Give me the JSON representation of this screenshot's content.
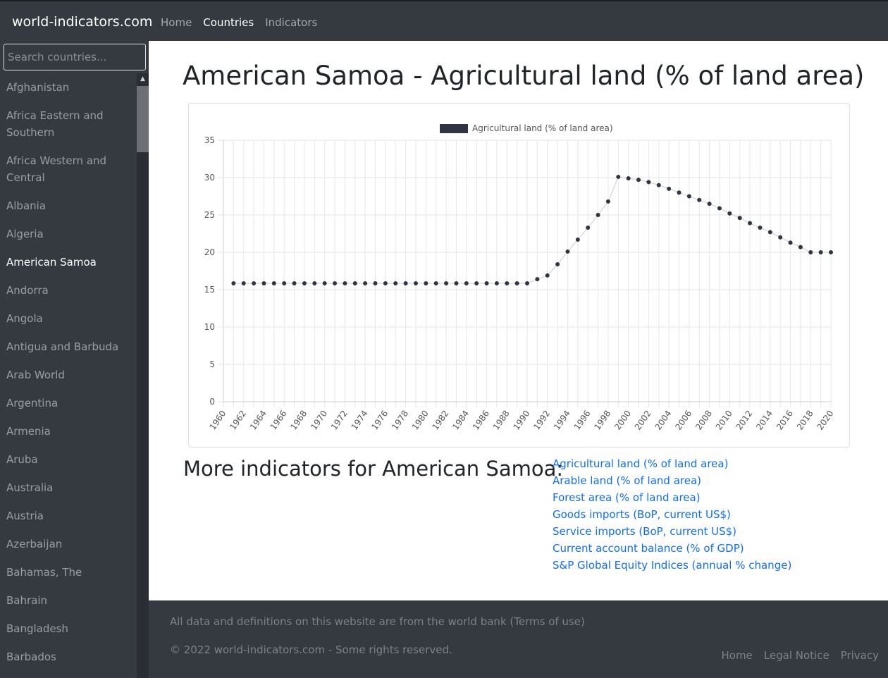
{
  "brand": "world-indicators.com",
  "nav": {
    "home": "Home",
    "countries": "Countries",
    "indicators": "Indicators"
  },
  "sidebar": {
    "search_placeholder": "Search countries...",
    "countries": [
      "Afghanistan",
      "Africa Eastern and Southern",
      "Africa Western and Central",
      "Albania",
      "Algeria",
      "American Samoa",
      "Andorra",
      "Angola",
      "Antigua and Barbuda",
      "Arab World",
      "Argentina",
      "Armenia",
      "Aruba",
      "Australia",
      "Austria",
      "Azerbaijan",
      "Bahamas, The",
      "Bahrain",
      "Bangladesh",
      "Barbados"
    ],
    "selected": "American Samoa"
  },
  "page_title": "American Samoa - Agricultural land (% of land area)",
  "chart_data": {
    "type": "line",
    "legend": "Agricultural land (% of land area)",
    "legend_position": "top",
    "x": [
      1961,
      1962,
      1963,
      1964,
      1965,
      1966,
      1967,
      1968,
      1969,
      1970,
      1971,
      1972,
      1973,
      1974,
      1975,
      1976,
      1977,
      1978,
      1979,
      1980,
      1981,
      1982,
      1983,
      1984,
      1985,
      1986,
      1987,
      1988,
      1989,
      1990,
      1991,
      1992,
      1993,
      1994,
      1995,
      1996,
      1997,
      1998,
      1999,
      2000,
      2001,
      2002,
      2003,
      2004,
      2005,
      2006,
      2007,
      2008,
      2009,
      2010,
      2011,
      2012,
      2013,
      2014,
      2015,
      2016,
      2017,
      2018,
      2019,
      2020
    ],
    "y": [
      15.85,
      15.85,
      15.85,
      15.85,
      15.85,
      15.85,
      15.85,
      15.85,
      15.85,
      15.85,
      15.85,
      15.85,
      15.85,
      15.85,
      15.85,
      15.85,
      15.85,
      15.85,
      15.85,
      15.85,
      15.85,
      15.85,
      15.85,
      15.85,
      15.85,
      15.85,
      15.85,
      15.85,
      15.85,
      15.85,
      16.4,
      16.9,
      18.4,
      20.1,
      21.7,
      23.3,
      25.0,
      26.8,
      30.1,
      29.9,
      29.7,
      29.4,
      29.0,
      28.5,
      28.0,
      27.5,
      27.0,
      26.5,
      25.9,
      25.2,
      24.6,
      23.9,
      23.3,
      22.7,
      22.0,
      21.3,
      20.7,
      20.0,
      20.0,
      20.0
    ],
    "x_ticks": [
      "1960",
      "1962",
      "1964",
      "1966",
      "1968",
      "1970",
      "1972",
      "1974",
      "1976",
      "1978",
      "1980",
      "1982",
      "1984",
      "1986",
      "1988",
      "1990",
      "1992",
      "1994",
      "1996",
      "1998",
      "2000",
      "2002",
      "2004",
      "2006",
      "2008",
      "2010",
      "2012",
      "2014",
      "2016",
      "2018",
      "2020"
    ],
    "y_ticks": [
      "0",
      "5",
      "10",
      "15",
      "20",
      "25",
      "30",
      "35"
    ],
    "ylim": [
      0,
      35
    ],
    "xlim": [
      1960,
      2020
    ],
    "grid": true,
    "series_color": "#2f3542"
  },
  "more_heading": "More indicators for American Samoa:",
  "more_links": [
    "Agricultural land (% of land area)",
    "Arable land (% of land area)",
    "Forest area (% of land area)",
    "Goods imports (BoP, current US$)",
    "Service imports (BoP, current US$)",
    "Current account balance (% of GDP)",
    "S&P Global Equity Indices (annual % change)"
  ],
  "footer": {
    "source": "All data and definitions on this website are from the world bank (Terms of use)",
    "copyright": "© 2022 world-indicators.com - Some rights reserved.",
    "links": [
      "Home",
      "Legal Notice",
      "Privacy"
    ]
  }
}
